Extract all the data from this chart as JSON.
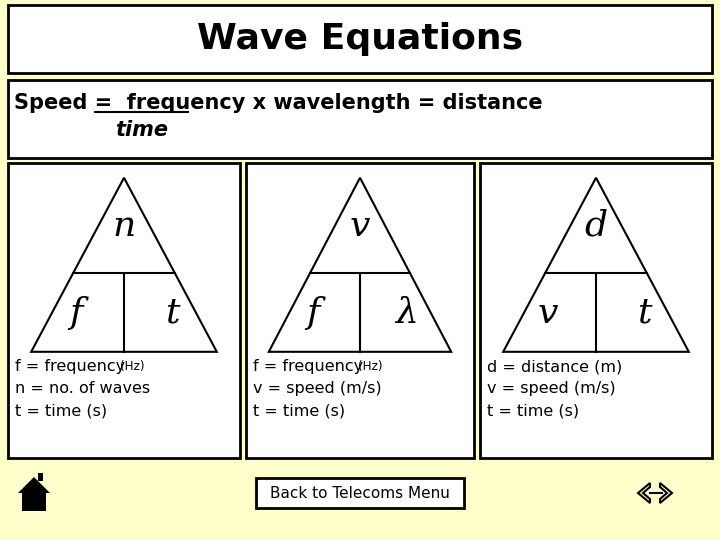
{
  "bg_color": "#ffffcc",
  "title": "Wave Equations",
  "title_fontsize": 26,
  "box_bg": "#ffffff",
  "border_color": "#000000",
  "font_color": "#000000",
  "box1_labels": [
    "n",
    "f",
    "t"
  ],
  "box2_labels": [
    "v",
    "f",
    "λ"
  ],
  "box3_labels": [
    "d",
    "v",
    "t"
  ],
  "box1_notes": [
    "f = frequency (Hz)",
    "n = no. of waves",
    "t = time (s)"
  ],
  "box2_notes": [
    "f = frequency (Hz)",
    "v = speed (m/s)",
    "t = time (s)"
  ],
  "box3_notes": [
    "d = distance (m)",
    "v = speed (m/s)",
    "t = time (s)"
  ],
  "bottom_button": "Back to Telecoms Menu",
  "speed_prefix": "Speed =  ",
  "speed_top": "frequency x wavelength = distance",
  "speed_bottom": "time",
  "underline_word": "frequency"
}
